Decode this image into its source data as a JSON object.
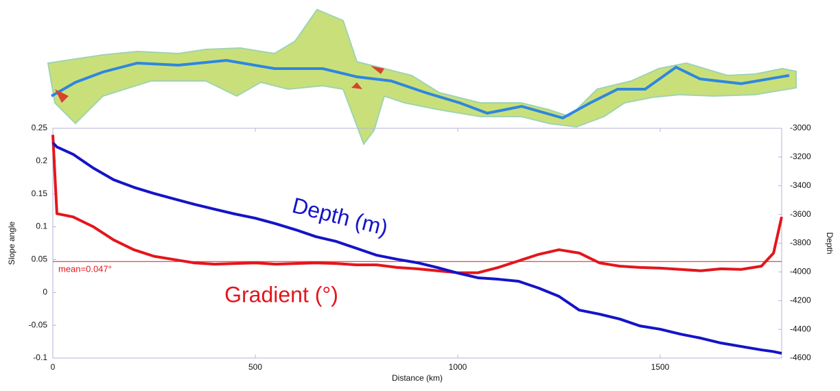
{
  "chart_data": {
    "type": "line",
    "x_label": "Distance (km)",
    "y_label": "Slope angle",
    "y2_label": "Depth",
    "x": [
      0,
      10,
      50,
      100,
      150,
      200,
      250,
      300,
      350,
      400,
      450,
      500,
      550,
      600,
      650,
      700,
      750,
      800,
      850,
      900,
      950,
      1000,
      1050,
      1100,
      1150,
      1200,
      1250,
      1300,
      1350,
      1400,
      1450,
      1500,
      1550,
      1600,
      1650,
      1700,
      1750,
      1780,
      1800
    ],
    "series": [
      {
        "color": "#e3161c",
        "axis": "y",
        "values": [
          0.24,
          0.12,
          0.115,
          0.1,
          0.08,
          0.065,
          0.055,
          0.05,
          0.045,
          0.043,
          0.044,
          0.045,
          0.043,
          0.044,
          0.045,
          0.044,
          0.042,
          0.042,
          0.038,
          0.036,
          0.033,
          0.03,
          0.03,
          0.038,
          0.048,
          0.058,
          0.065,
          0.06,
          0.045,
          0.04,
          0.038,
          0.037,
          0.035,
          0.033,
          0.036,
          0.035,
          0.04,
          0.06,
          0.115
        ]
      },
      {
        "color": "#1414c8",
        "axis": "y2",
        "values": [
          -3100,
          -3130,
          -3181,
          -3277,
          -3358,
          -3411,
          -3454,
          -3492,
          -3530,
          -3564,
          -3597,
          -3626,
          -3664,
          -3707,
          -3755,
          -3788,
          -3836,
          -3884,
          -3912,
          -3936,
          -3970,
          -4008,
          -4041,
          -4051,
          -4065,
          -4113,
          -4170,
          -4266,
          -4294,
          -4328,
          -4376,
          -4399,
          -4433,
          -4461,
          -4495,
          -4519,
          -4543,
          -4555,
          -4567
        ]
      }
    ],
    "mean_line": {
      "value": 0.047,
      "label": "mean=0.047°",
      "color": "#e3161c"
    },
    "annotations": [
      {
        "text": "Depth (m)",
        "color": "#1414c8"
      },
      {
        "text": "Gradient (°)",
        "color": "#e3161c"
      }
    ],
    "xlim": [
      0,
      1800
    ],
    "xticks": [
      0,
      500,
      1000,
      1500
    ],
    "ylim": [
      -0.1,
      0.25
    ],
    "yticks": [
      0.25,
      0.2,
      0.15,
      0.1,
      0.05,
      0,
      -0.05,
      -0.1
    ],
    "y2lim": [
      -4600,
      -3000
    ],
    "y2ticks": [
      -3000,
      -3200,
      -3400,
      -3600,
      -3800,
      -4000,
      -4200,
      -4400,
      -4600
    ]
  }
}
